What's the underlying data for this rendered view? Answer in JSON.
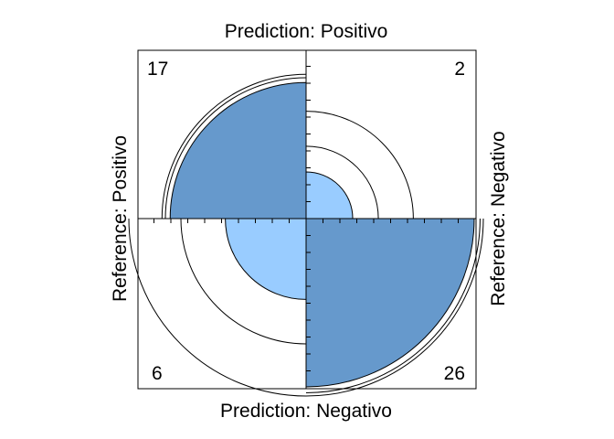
{
  "chart_data": {
    "type": "fourfold",
    "labels": {
      "top": "Prediction: Positivo",
      "bottom": "Prediction: Negativo",
      "left": "Reference: Positivo",
      "right": "Reference: Negativo"
    },
    "cells": [
      {
        "quadrant": "top-left",
        "count": "17",
        "value": 17,
        "color": "#6699cc"
      },
      {
        "quadrant": "top-right",
        "count": "2",
        "value": 2,
        "color": "#99ccff"
      },
      {
        "quadrant": "bottom-left",
        "count": "6",
        "value": 6,
        "color": "#99ccff"
      },
      {
        "quadrant": "bottom-right",
        "count": "26",
        "value": 26,
        "color": "#6699cc"
      }
    ],
    "confidence_rings": true
  }
}
